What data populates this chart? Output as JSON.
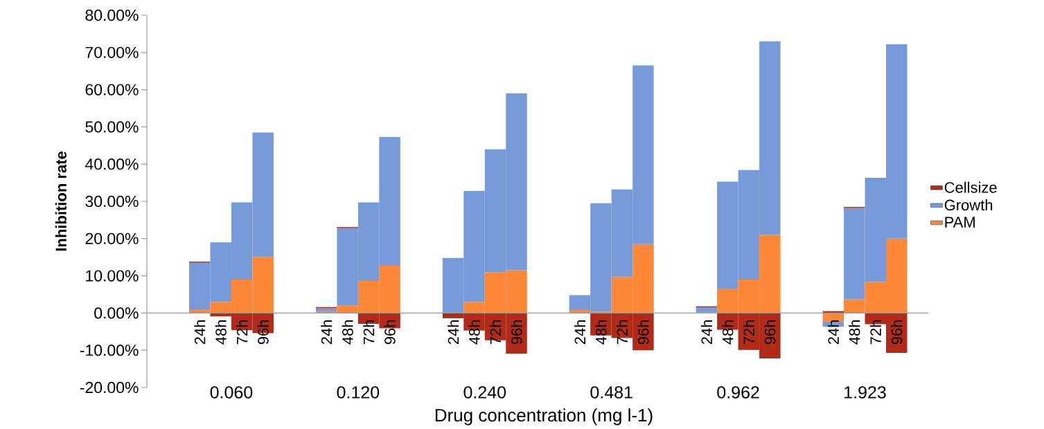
{
  "chart_data": {
    "type": "bar",
    "stacked": true,
    "legend": "right",
    "xlabel": "Drug concentration (mg l-1)",
    "ylabel": "Inhibition rate",
    "categories": [
      null,
      null,
      "24h",
      "48h",
      "72h",
      "96h",
      null,
      null,
      "24h",
      "48h",
      "72h",
      "96h",
      null,
      null,
      "24h",
      "48h",
      "72h",
      "96h",
      null,
      null,
      "24h",
      "48h",
      "72h",
      "96h",
      null,
      null,
      "24h",
      "48h",
      "72h",
      "96h",
      null,
      null,
      "24h",
      "48h",
      "72h",
      "96h"
    ],
    "annotations": [
      "0.060",
      "0.120",
      "0.240",
      "0.481",
      "0.962",
      "1.923"
    ],
    "series": [
      {
        "name": "PAM",
        "color": "#fe8838",
        "values": [
          null,
          null,
          1.0,
          3.0,
          9.0,
          15.0,
          null,
          null,
          0.4,
          2.0,
          8.6,
          12.7,
          null,
          null,
          0,
          3.0,
          11.0,
          11.5,
          null,
          null,
          0.8,
          0.4,
          9.7,
          18.5,
          null,
          null,
          0.2,
          6.6,
          9.0,
          21.0,
          null,
          null,
          -2.3,
          3.7,
          8.4,
          20.0
        ]
      },
      {
        "name": "Growth",
        "color": "#779ad8",
        "values": [
          null,
          null,
          12.5,
          16.0,
          20.7,
          33.5,
          null,
          null,
          0.9,
          20.8,
          21.1,
          34.6,
          null,
          null,
          14.8,
          29.8,
          33.0,
          47.5,
          null,
          null,
          4.0,
          29.1,
          23.5,
          48.0,
          null,
          null,
          1.3,
          28.7,
          29.4,
          52.0,
          null,
          null,
          -1.4,
          24.5,
          27.9,
          52.2
        ]
      },
      {
        "name": "Cellsize",
        "color": "#b22b18",
        "values": [
          null,
          null,
          0.3,
          -0.9,
          -4.6,
          -5.4,
          null,
          null,
          0.3,
          0.3,
          -2.9,
          -4.1,
          null,
          null,
          -1.4,
          -4.7,
          -7.3,
          -10.9,
          null,
          null,
          0,
          -6.0,
          -6.7,
          -10.0,
          null,
          null,
          0.3,
          -4.5,
          -9.9,
          -12.2,
          null,
          null,
          0.5,
          0.3,
          -3.0,
          -10.7
        ]
      }
    ],
    "ylim": [
      -20,
      80
    ],
    "yticks": [
      {
        "value": -20,
        "label": "-20.00%"
      },
      {
        "value": -10,
        "label": "-10.00%"
      },
      {
        "value": 0,
        "label": "0.00%"
      },
      {
        "value": 10,
        "label": "10.00%"
      },
      {
        "value": 20,
        "label": "20.00%"
      },
      {
        "value": 30,
        "label": "30.00%"
      },
      {
        "value": 40,
        "label": "40.00%"
      },
      {
        "value": 50,
        "label": "50.00%"
      },
      {
        "value": 60,
        "label": "60.00%"
      },
      {
        "value": 70,
        "label": "70.00%"
      },
      {
        "value": 80,
        "label": "80.00%"
      }
    ]
  }
}
